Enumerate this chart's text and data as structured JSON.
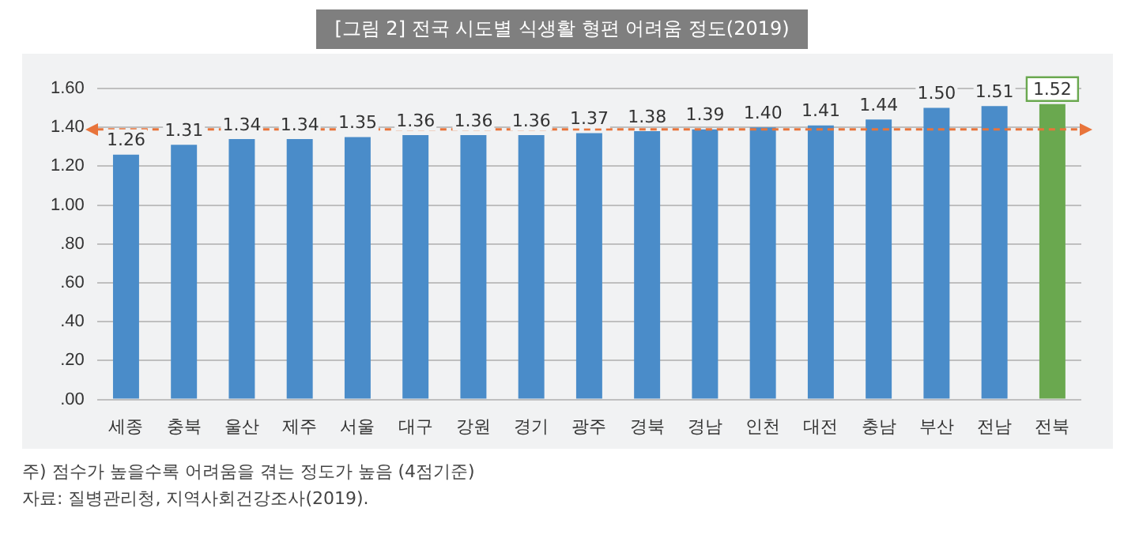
{
  "chart_data": {
    "type": "bar",
    "title": "[그림 2] 전국 시도별 식생활 형편 어려움 정도(2019)",
    "categories": [
      "세종",
      "충북",
      "울산",
      "제주",
      "서울",
      "대구",
      "강원",
      "경기",
      "광주",
      "경북",
      "경남",
      "인천",
      "대전",
      "충남",
      "부산",
      "전남",
      "전북"
    ],
    "values": [
      1.26,
      1.31,
      1.34,
      1.34,
      1.35,
      1.36,
      1.36,
      1.36,
      1.37,
      1.38,
      1.39,
      1.4,
      1.41,
      1.44,
      1.5,
      1.51,
      1.52
    ],
    "colors": [
      "#4a8cc9",
      "#4a8cc9",
      "#4a8cc9",
      "#4a8cc9",
      "#4a8cc9",
      "#4a8cc9",
      "#4a8cc9",
      "#4a8cc9",
      "#4a8cc9",
      "#4a8cc9",
      "#4a8cc9",
      "#4a8cc9",
      "#4a8cc9",
      "#4a8cc9",
      "#4a8cc9",
      "#4a8cc9",
      "#6aa84f"
    ],
    "value_labels": [
      "1.26",
      "1.31",
      "1.34",
      "1.34",
      "1.35",
      "1.36",
      "1.36",
      "1.36",
      "1.37",
      "1.38",
      "1.39",
      "1.40",
      "1.41",
      "1.44",
      "1.50",
      "1.51",
      "1.52"
    ],
    "ylim": [
      0,
      1.6
    ],
    "yticks": [
      {
        "value": 0,
        "label": ".00"
      },
      {
        "value": 0.2,
        "label": ".20"
      },
      {
        "value": 0.4,
        "label": ".40"
      },
      {
        "value": 0.6,
        "label": ".60"
      },
      {
        "value": 0.8,
        "label": ".80"
      },
      {
        "value": 1,
        "label": "1.00"
      },
      {
        "value": 1.2,
        "label": "1.20"
      },
      {
        "value": 1.4,
        "label": "1.40"
      },
      {
        "value": 1.6,
        "label": "1.60"
      }
    ],
    "grid": "y",
    "legend": false,
    "ref_lines": [
      {
        "axis": "y",
        "value": 1.39,
        "color": "#e8743b",
        "line_style": "dashed"
      }
    ],
    "annotations": [
      "주) 점수가 높을수록 어려움을 겪는 정도가 높음 (4점기준)",
      "자료: 질병관리청, 지역사회건강조사(2019)."
    ]
  }
}
